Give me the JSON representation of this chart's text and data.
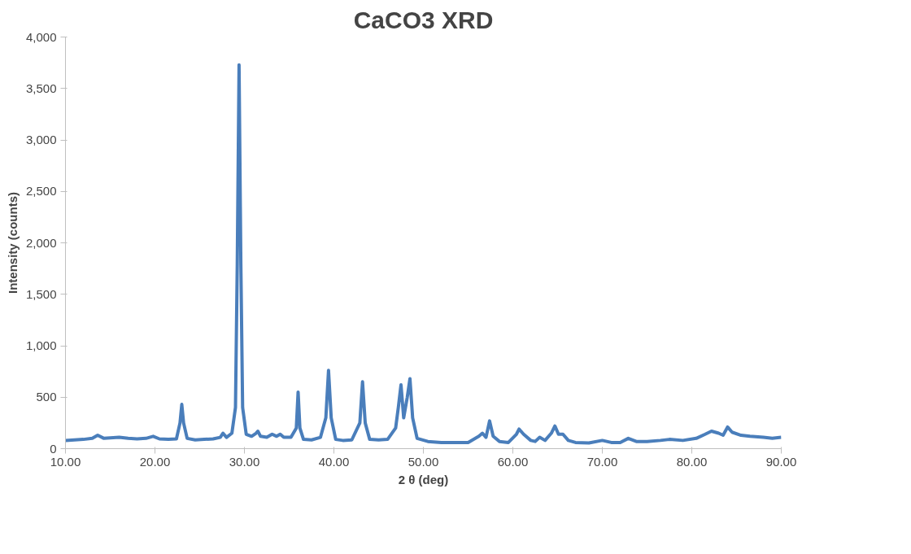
{
  "chart_data": {
    "type": "line",
    "title": "CaCO3 XRD",
    "xlabel": "2 θ (deg)",
    "ylabel": "Intensity (counts)",
    "xlim": [
      10,
      90
    ],
    "ylim": [
      0,
      4000
    ],
    "xticks": [
      {
        "value": 10,
        "label": "10.00"
      },
      {
        "value": 20,
        "label": "20.00"
      },
      {
        "value": 30,
        "label": "30.00"
      },
      {
        "value": 40,
        "label": "40.00"
      },
      {
        "value": 50,
        "label": "50.00"
      },
      {
        "value": 60,
        "label": "60.00"
      },
      {
        "value": 70,
        "label": "70.00"
      },
      {
        "value": 80,
        "label": "80.00"
      },
      {
        "value": 90,
        "label": "90.00"
      }
    ],
    "yticks": [
      {
        "value": 0,
        "label": "0"
      },
      {
        "value": 500,
        "label": "500"
      },
      {
        "value": 1000,
        "label": "1,000"
      },
      {
        "value": 1500,
        "label": "1,500"
      },
      {
        "value": 2000,
        "label": "2,000"
      },
      {
        "value": 2500,
        "label": "2,500"
      },
      {
        "value": 3000,
        "label": "3,000"
      },
      {
        "value": 3500,
        "label": "3,500"
      },
      {
        "value": 4000,
        "label": "4,000"
      }
    ],
    "grid": false,
    "line_style": "solid",
    "marker": "none",
    "series": [
      {
        "color": "#4a7ebb",
        "x": [
          10,
          11,
          12,
          13,
          13.6,
          14.3,
          15,
          16,
          17,
          18,
          19,
          19.8,
          20.5,
          21.5,
          22.4,
          22.8,
          23.0,
          23.2,
          23.6,
          24.5,
          25.5,
          26.5,
          27.3,
          27.6,
          28.0,
          28.6,
          29.0,
          29.2,
          29.4,
          29.6,
          29.8,
          30.2,
          30.8,
          31.3,
          31.5,
          31.8,
          32.5,
          33.1,
          33.6,
          34.0,
          34.4,
          35.2,
          35.8,
          36.0,
          36.2,
          36.6,
          37.5,
          38.5,
          39.1,
          39.4,
          39.7,
          40.2,
          41.0,
          42.0,
          42.9,
          43.2,
          43.5,
          44.0,
          45.0,
          46.0,
          46.9,
          47.2,
          47.5,
          47.8,
          48.0,
          48.2,
          48.5,
          48.8,
          49.3,
          50.5,
          52,
          53.5,
          55,
          56.2,
          56.6,
          57.0,
          57.4,
          57.8,
          58.5,
          59.5,
          60.4,
          60.7,
          61.2,
          62.0,
          62.5,
          63.0,
          63.6,
          64.3,
          64.7,
          65.1,
          65.6,
          66.2,
          67,
          68.5,
          70.0,
          71.0,
          72.0,
          72.9,
          73.8,
          75,
          76.5,
          77.5,
          79,
          80.5,
          81.5,
          82.2,
          83,
          83.5,
          84.0,
          84.5,
          85.5,
          86.5,
          88,
          89,
          90
        ],
        "values": [
          80,
          85,
          90,
          100,
          130,
          100,
          105,
          110,
          100,
          95,
          100,
          120,
          95,
          90,
          95,
          250,
          430,
          250,
          100,
          85,
          90,
          95,
          110,
          150,
          110,
          150,
          400,
          1800,
          3730,
          1800,
          400,
          140,
          120,
          150,
          170,
          120,
          110,
          140,
          120,
          140,
          110,
          110,
          200,
          550,
          200,
          90,
          85,
          110,
          300,
          760,
          300,
          90,
          80,
          85,
          250,
          650,
          250,
          90,
          85,
          90,
          200,
          400,
          620,
          300,
          400,
          500,
          680,
          300,
          100,
          70,
          60,
          60,
          60,
          120,
          150,
          110,
          270,
          120,
          70,
          60,
          140,
          190,
          140,
          80,
          70,
          110,
          80,
          150,
          220,
          140,
          140,
          80,
          60,
          55,
          80,
          60,
          60,
          100,
          70,
          70,
          80,
          90,
          80,
          100,
          140,
          170,
          150,
          130,
          210,
          160,
          130,
          120,
          110,
          100,
          110
        ]
      }
    ]
  }
}
